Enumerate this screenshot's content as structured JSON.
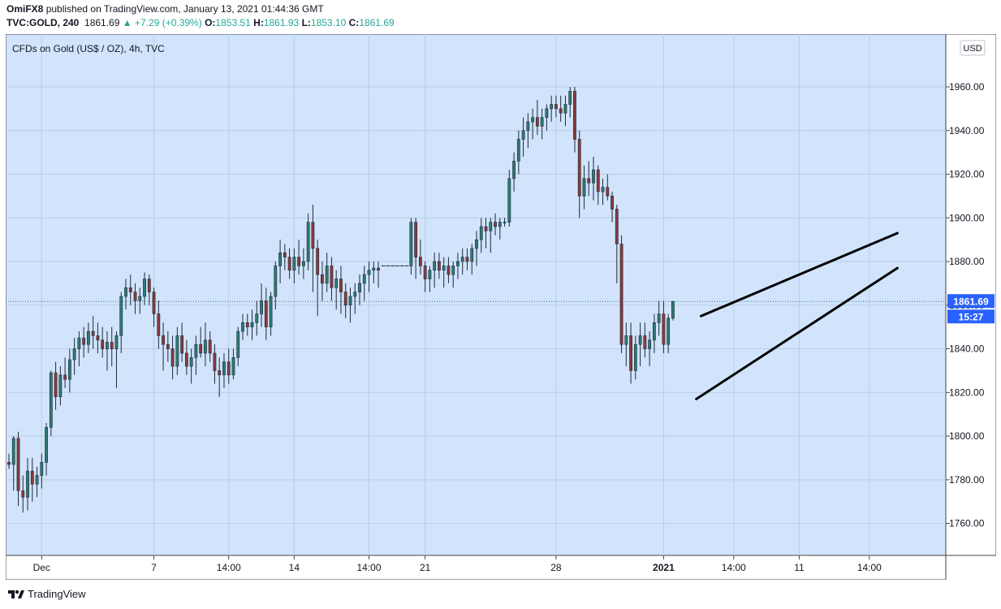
{
  "header": {
    "author": "OmiFX8",
    "published_text": "published on TradingView.com, January 13, 2021 01:44:36 GMT",
    "symbol": "TVC:GOLD, 240",
    "last": "1861.69",
    "change": "+7.29 (+0.39%)",
    "open_label": "O:",
    "open": "1853.51",
    "high_label": "H:",
    "high": "1861.93",
    "low_label": "L:",
    "low": "1853.10",
    "close_label": "C:",
    "close": "1861.69"
  },
  "chart_title": "CFDs on Gold (US$ / OZ), 4h, TVC",
  "currency": "USD",
  "price_badge": "1861.69",
  "countdown_badge": "15:27",
  "footer": {
    "brand": "TradingView"
  },
  "colors": {
    "background": "#d1e4fc",
    "up": "#2e7b74",
    "down": "#8b3a3a",
    "wick": "#1e2a3a",
    "badge": "#2962ff",
    "trendline": "#000000"
  },
  "chart_data": {
    "type": "candlestick",
    "title": "CFDs on Gold (US$ / OZ), 4h, TVC",
    "ylabel": "USD",
    "y_ticks": [
      "1760.00",
      "1780.00",
      "1800.00",
      "1820.00",
      "1840.00",
      "1860.00",
      "1880.00",
      "1900.00",
      "1920.00",
      "1940.00",
      "1960.00"
    ],
    "x_ticks": [
      {
        "label": "Dec",
        "bold": false
      },
      {
        "label": "7",
        "bold": false
      },
      {
        "label": "14:00",
        "bold": false
      },
      {
        "label": "14",
        "bold": false
      },
      {
        "label": "14:00",
        "bold": false
      },
      {
        "label": "21",
        "bold": false
      },
      {
        "label": "28",
        "bold": false
      },
      {
        "label": "2021",
        "bold": true
      },
      {
        "label": "14:00",
        "bold": false
      },
      {
        "label": "11",
        "bold": false
      },
      {
        "label": "14:00",
        "bold": false
      }
    ],
    "last_price": 1861.69,
    "candles": [
      [
        1788,
        1792,
        1785,
        1787
      ],
      [
        1787,
        1800,
        1775,
        1799
      ],
      [
        1799,
        1802,
        1768,
        1775
      ],
      [
        1775,
        1782,
        1765,
        1772
      ],
      [
        1772,
        1790,
        1766,
        1784
      ],
      [
        1784,
        1790,
        1770,
        1778
      ],
      [
        1778,
        1786,
        1772,
        1782
      ],
      [
        1782,
        1792,
        1776,
        1788
      ],
      [
        1788,
        1806,
        1782,
        1804
      ],
      [
        1804,
        1830,
        1800,
        1829
      ],
      [
        1829,
        1834,
        1812,
        1818
      ],
      [
        1818,
        1832,
        1814,
        1828
      ],
      [
        1828,
        1836,
        1822,
        1826
      ],
      [
        1826,
        1840,
        1820,
        1835
      ],
      [
        1835,
        1845,
        1828,
        1840
      ],
      [
        1840,
        1848,
        1832,
        1845
      ],
      [
        1845,
        1850,
        1836,
        1842
      ],
      [
        1842,
        1852,
        1838,
        1848
      ],
      [
        1848,
        1855,
        1840,
        1846
      ],
      [
        1846,
        1852,
        1838,
        1844
      ],
      [
        1844,
        1850,
        1836,
        1840
      ],
      [
        1840,
        1848,
        1830,
        1843
      ],
      [
        1843,
        1850,
        1832,
        1840
      ],
      [
        1840,
        1848,
        1822,
        1846
      ],
      [
        1846,
        1866,
        1838,
        1864
      ],
      [
        1864,
        1872,
        1858,
        1868
      ],
      [
        1868,
        1874,
        1860,
        1866
      ],
      [
        1866,
        1870,
        1856,
        1862
      ],
      [
        1862,
        1868,
        1856,
        1864
      ],
      [
        1864,
        1875,
        1860,
        1872
      ],
      [
        1872,
        1874,
        1860,
        1866
      ],
      [
        1866,
        1868,
        1850,
        1856
      ],
      [
        1856,
        1862,
        1840,
        1846
      ],
      [
        1846,
        1852,
        1830,
        1842
      ],
      [
        1842,
        1848,
        1834,
        1840
      ],
      [
        1840,
        1846,
        1826,
        1832
      ],
      [
        1832,
        1850,
        1828,
        1846
      ],
      [
        1846,
        1852,
        1834,
        1838
      ],
      [
        1838,
        1844,
        1828,
        1832
      ],
      [
        1832,
        1840,
        1824,
        1836
      ],
      [
        1836,
        1846,
        1828,
        1842
      ],
      [
        1842,
        1850,
        1836,
        1838
      ],
      [
        1838,
        1852,
        1832,
        1844
      ],
      [
        1844,
        1848,
        1834,
        1838
      ],
      [
        1838,
        1842,
        1824,
        1830
      ],
      [
        1830,
        1836,
        1818,
        1828
      ],
      [
        1828,
        1838,
        1822,
        1834
      ],
      [
        1834,
        1840,
        1824,
        1828
      ],
      [
        1828,
        1840,
        1826,
        1836
      ],
      [
        1836,
        1850,
        1832,
        1848
      ],
      [
        1848,
        1856,
        1844,
        1852
      ],
      [
        1852,
        1856,
        1846,
        1850
      ],
      [
        1850,
        1858,
        1844,
        1852
      ],
      [
        1852,
        1862,
        1846,
        1856
      ],
      [
        1856,
        1870,
        1850,
        1862
      ],
      [
        1862,
        1868,
        1844,
        1850
      ],
      [
        1850,
        1866,
        1846,
        1864
      ],
      [
        1864,
        1880,
        1858,
        1878
      ],
      [
        1878,
        1890,
        1870,
        1884
      ],
      [
        1884,
        1888,
        1876,
        1882
      ],
      [
        1882,
        1886,
        1872,
        1876
      ],
      [
        1876,
        1886,
        1870,
        1882
      ],
      [
        1882,
        1890,
        1874,
        1878
      ],
      [
        1878,
        1886,
        1872,
        1880
      ],
      [
        1880,
        1902,
        1876,
        1898
      ],
      [
        1898,
        1906,
        1866,
        1886
      ],
      [
        1886,
        1890,
        1855,
        1874
      ],
      [
        1874,
        1880,
        1862,
        1870
      ],
      [
        1870,
        1884,
        1866,
        1878
      ],
      [
        1878,
        1882,
        1862,
        1868
      ],
      [
        1868,
        1876,
        1858,
        1872
      ],
      [
        1872,
        1878,
        1856,
        1866
      ],
      [
        1866,
        1870,
        1854,
        1860
      ],
      [
        1860,
        1868,
        1852,
        1864
      ],
      [
        1864,
        1870,
        1856,
        1866
      ],
      [
        1866,
        1874,
        1860,
        1870
      ],
      [
        1870,
        1878,
        1862,
        1874
      ],
      [
        1874,
        1880,
        1866,
        1876
      ],
      [
        1876,
        1880,
        1870,
        1877
      ],
      [
        1877,
        1880,
        1868,
        1876
      ],
      [
        1878,
        1878,
        1878,
        1878
      ],
      [
        1878,
        1878,
        1878,
        1878
      ],
      [
        1878,
        1878,
        1878,
        1878
      ],
      [
        1878,
        1878,
        1878,
        1878
      ],
      [
        1878,
        1878,
        1878,
        1878
      ],
      [
        1878,
        1878,
        1878,
        1878
      ],
      [
        1878,
        1900,
        1874,
        1898
      ],
      [
        1898,
        1900,
        1872,
        1882
      ],
      [
        1882,
        1890,
        1874,
        1878
      ],
      [
        1878,
        1880,
        1866,
        1872
      ],
      [
        1872,
        1878,
        1866,
        1876
      ],
      [
        1876,
        1884,
        1868,
        1880
      ],
      [
        1880,
        1884,
        1872,
        1876
      ],
      [
        1876,
        1882,
        1868,
        1878
      ],
      [
        1878,
        1882,
        1870,
        1874
      ],
      [
        1874,
        1880,
        1868,
        1878
      ],
      [
        1878,
        1884,
        1872,
        1880
      ],
      [
        1880,
        1886,
        1874,
        1882
      ],
      [
        1882,
        1886,
        1876,
        1880
      ],
      [
        1880,
        1888,
        1874,
        1886
      ],
      [
        1886,
        1894,
        1878,
        1890
      ],
      [
        1890,
        1900,
        1884,
        1896
      ],
      [
        1896,
        1900,
        1886,
        1894
      ],
      [
        1894,
        1900,
        1884,
        1898
      ],
      [
        1898,
        1902,
        1892,
        1896
      ],
      [
        1896,
        1900,
        1890,
        1898
      ],
      [
        1898,
        1900,
        1896,
        1898
      ],
      [
        1898,
        1922,
        1896,
        1918
      ],
      [
        1918,
        1930,
        1912,
        1926
      ],
      [
        1926,
        1940,
        1920,
        1936
      ],
      [
        1936,
        1946,
        1928,
        1940
      ],
      [
        1940,
        1948,
        1932,
        1944
      ],
      [
        1944,
        1950,
        1936,
        1946
      ],
      [
        1946,
        1954,
        1938,
        1942
      ],
      [
        1942,
        1950,
        1936,
        1946
      ],
      [
        1946,
        1952,
        1940,
        1950
      ],
      [
        1950,
        1956,
        1944,
        1952
      ],
      [
        1952,
        1956,
        1946,
        1950
      ],
      [
        1950,
        1956,
        1944,
        1948
      ],
      [
        1948,
        1956,
        1942,
        1952
      ],
      [
        1952,
        1960,
        1946,
        1958
      ],
      [
        1958,
        1960,
        1930,
        1936
      ],
      [
        1936,
        1940,
        1900,
        1910
      ],
      [
        1910,
        1924,
        1904,
        1918
      ],
      [
        1918,
        1926,
        1910,
        1916
      ],
      [
        1916,
        1928,
        1908,
        1922
      ],
      [
        1922,
        1924,
        1906,
        1912
      ],
      [
        1912,
        1918,
        1906,
        1914
      ],
      [
        1914,
        1920,
        1908,
        1910
      ],
      [
        1910,
        1912,
        1898,
        1904
      ],
      [
        1904,
        1906,
        1870,
        1888
      ],
      [
        1888,
        1892,
        1838,
        1842
      ],
      [
        1842,
        1852,
        1832,
        1846
      ],
      [
        1846,
        1852,
        1824,
        1830
      ],
      [
        1830,
        1846,
        1826,
        1842
      ],
      [
        1842,
        1852,
        1832,
        1846
      ],
      [
        1846,
        1852,
        1836,
        1840
      ],
      [
        1840,
        1848,
        1832,
        1844
      ],
      [
        1844,
        1856,
        1838,
        1852
      ],
      [
        1852,
        1862,
        1846,
        1856
      ],
      [
        1856,
        1862,
        1838,
        1842
      ],
      [
        1842,
        1856,
        1838,
        1854
      ],
      [
        1854,
        1862,
        1853,
        1861.69
      ]
    ],
    "trendlines": [
      {
        "name": "upper",
        "from": {
          "bar": 148,
          "price": 1855
        },
        "to": {
          "bar": 190,
          "price": 1893
        }
      },
      {
        "name": "lower",
        "from": {
          "bar": 147,
          "price": 1817
        },
        "to": {
          "bar": 190,
          "price": 1877
        }
      }
    ]
  }
}
